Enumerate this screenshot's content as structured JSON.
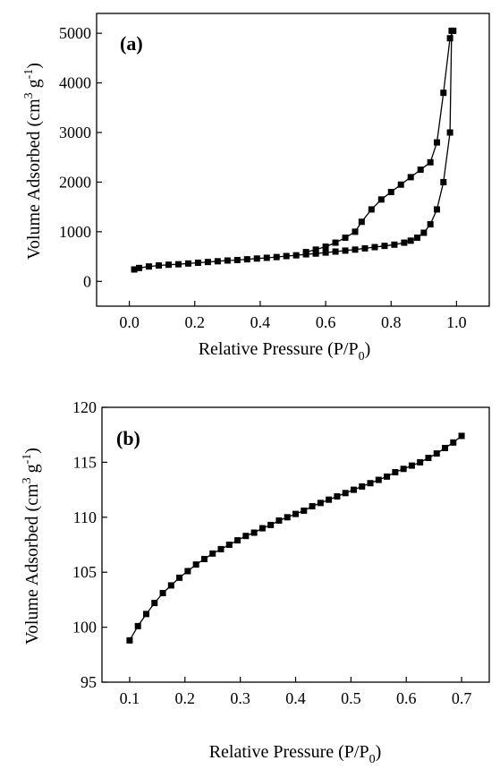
{
  "chart_data": [
    {
      "type": "line",
      "panel_label": "(a)",
      "xlabel": "Relative Pressure (P/P0)",
      "ylabel": "Volume Adsorbed (cm3 g-1)",
      "xlim": [
        -0.1,
        1.1
      ],
      "ylim": [
        -500,
        5400
      ],
      "x_ticks": [
        0.0,
        0.2,
        0.4,
        0.6,
        0.8,
        1.0
      ],
      "x_tick_labels": [
        "0.0",
        "0.2",
        "0.4",
        "0.6",
        "0.8",
        "1.0"
      ],
      "y_ticks": [
        0,
        1000,
        2000,
        3000,
        4000,
        5000
      ],
      "y_tick_labels": [
        "0",
        "1000",
        "2000",
        "3000",
        "4000",
        "5000"
      ],
      "grid": false,
      "marker": "square",
      "series": [
        {
          "x": [
            0.015,
            0.03,
            0.06,
            0.09,
            0.12,
            0.15,
            0.18,
            0.21,
            0.24,
            0.27,
            0.3,
            0.33,
            0.36,
            0.39,
            0.42,
            0.45,
            0.48,
            0.51,
            0.54,
            0.57,
            0.6,
            0.63,
            0.66,
            0.69,
            0.72,
            0.75,
            0.78,
            0.81,
            0.84,
            0.86,
            0.88,
            0.9,
            0.92,
            0.94,
            0.96,
            0.98,
            0.985
          ],
          "y": [
            240,
            270,
            300,
            320,
            335,
            345,
            360,
            375,
            390,
            405,
            420,
            430,
            445,
            460,
            475,
            490,
            510,
            525,
            545,
            560,
            580,
            600,
            620,
            640,
            665,
            690,
            715,
            740,
            780,
            820,
            880,
            980,
            1150,
            1450,
            2000,
            3000,
            5050
          ]
        },
        {
          "x": [
            0.99,
            0.98,
            0.96,
            0.94,
            0.92,
            0.89,
            0.86,
            0.83,
            0.8,
            0.77,
            0.74,
            0.71,
            0.69,
            0.66,
            0.63,
            0.6,
            0.57,
            0.54
          ],
          "y": [
            5050,
            4900,
            3800,
            2800,
            2400,
            2250,
            2100,
            1950,
            1800,
            1650,
            1450,
            1200,
            1000,
            880,
            780,
            700,
            640,
            590
          ]
        }
      ]
    },
    {
      "type": "line",
      "panel_label": "(b)",
      "xlabel": "Relative Pressure (P/P0)",
      "ylabel": "Volume Adsorbed (cm3 g-1)",
      "xlim": [
        0.05,
        0.75
      ],
      "ylim": [
        95,
        120
      ],
      "x_ticks": [
        0.1,
        0.2,
        0.3,
        0.4,
        0.5,
        0.6,
        0.7
      ],
      "x_tick_labels": [
        "0.1",
        "0.2",
        "0.3",
        "0.4",
        "0.5",
        "0.6",
        "0.7"
      ],
      "y_ticks": [
        95,
        100,
        105,
        110,
        115,
        120
      ],
      "y_tick_labels": [
        "95",
        "100",
        "105",
        "110",
        "115",
        "120"
      ],
      "grid": false,
      "marker": "square",
      "series": [
        {
          "x": [
            0.1,
            0.115,
            0.13,
            0.145,
            0.16,
            0.175,
            0.19,
            0.205,
            0.22,
            0.235,
            0.25,
            0.265,
            0.28,
            0.295,
            0.31,
            0.325,
            0.34,
            0.355,
            0.37,
            0.385,
            0.4,
            0.415,
            0.43,
            0.445,
            0.46,
            0.475,
            0.49,
            0.505,
            0.52,
            0.535,
            0.55,
            0.565,
            0.58,
            0.595,
            0.61,
            0.625,
            0.64,
            0.655,
            0.67,
            0.685,
            0.7
          ],
          "y": [
            98.8,
            100.1,
            101.2,
            102.2,
            103.1,
            103.8,
            104.5,
            105.1,
            105.7,
            106.2,
            106.7,
            107.1,
            107.5,
            107.9,
            108.3,
            108.6,
            109.0,
            109.3,
            109.7,
            110.0,
            110.3,
            110.6,
            111.0,
            111.3,
            111.6,
            111.9,
            112.2,
            112.5,
            112.8,
            113.1,
            113.4,
            113.7,
            114.1,
            114.4,
            114.7,
            115.0,
            115.4,
            115.8,
            116.3,
            116.8,
            117.4
          ]
        }
      ]
    }
  ]
}
